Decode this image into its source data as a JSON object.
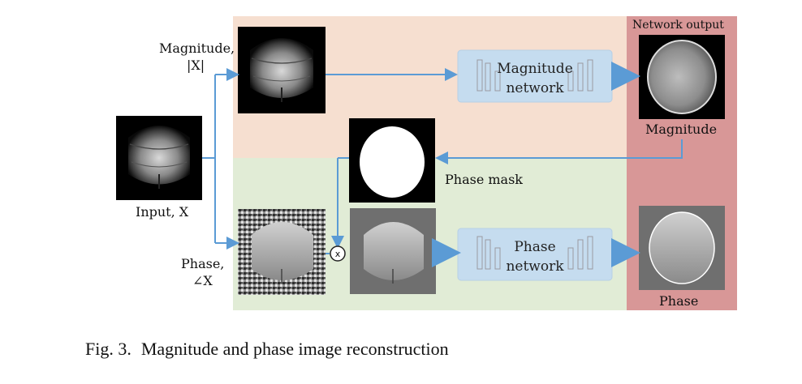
{
  "labels": {
    "input": "Input, X",
    "magnitude_line1": "Magnitude,",
    "magnitude_line2": "|X|",
    "phase_line1": "Phase,",
    "phase_line2": "∠X",
    "network_output": "Network output",
    "output_magnitude": "Magnitude",
    "phase_mask": "Phase mask",
    "output_phase": "Phase",
    "multiply_symbol": "x"
  },
  "networks": {
    "magnitude": {
      "line1": "Magnitude",
      "line2": "network"
    },
    "phase": {
      "line1": "Phase",
      "line2": "network"
    }
  },
  "caption": {
    "number": "Fig. 3.",
    "text": "Magnitude and phase image reconstruction"
  },
  "colors": {
    "magnitude_region": "#f6dfd0",
    "phase_region": "#e1ecd6",
    "output_region": "#d89797",
    "arrow": "#5b9bd5",
    "network_box": "#c5dcef"
  }
}
